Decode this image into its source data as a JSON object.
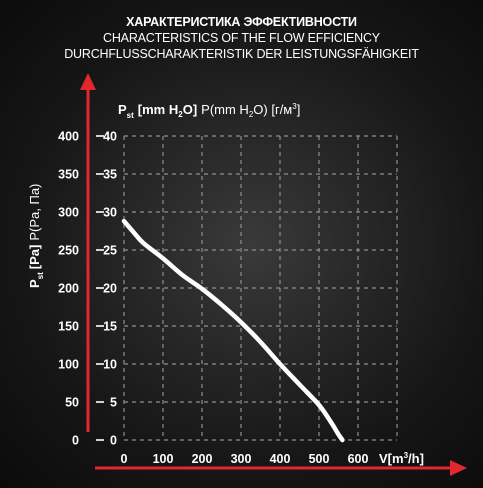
{
  "header": {
    "title_ru": "ХАРАКТЕРИСТИКА ЭФФЕКТИВНОСТИ",
    "title_en": "CHARACTERISTICS OF THE FLOW EFFICIENCY",
    "title_de": "DURCHFLUSSCHARAKTERISTIK DER LEISTUNGSFÄHIGKEIT"
  },
  "colors": {
    "background": "#1a1a1a",
    "axis_arrow": "#e0282d",
    "grid": "#9a9a9a",
    "curve": "#ffffff"
  },
  "chart_data": {
    "type": "line",
    "title": "",
    "ylabel": {
      "main": "P",
      "sub": "st",
      "bracket": "[Pa]",
      "rest": "P(Pa, Па)"
    },
    "y2label": {
      "main": "P",
      "sub": "st",
      "bracket": "[mm H",
      "sub2": "2",
      "close": "O]",
      "rest_open": "P(mm H",
      "rest_sub": "2",
      "rest_close": "O) [г/м",
      "rest_sup": "3",
      "rest_end": "]"
    },
    "xlabel": {
      "main": "V[m",
      "sup": "3",
      "end": "/h]"
    },
    "x_ticks": [
      "0",
      "100",
      "200",
      "300",
      "400",
      "500",
      "600"
    ],
    "y_ticks_pa": [
      "0",
      "50",
      "100",
      "150",
      "200",
      "250",
      "300",
      "350",
      "400"
    ],
    "y_ticks_mm": [
      "0",
      "5",
      "10",
      "15",
      "20",
      "25",
      "30",
      "35",
      "40"
    ],
    "xlim": [
      0,
      700
    ],
    "ylim_pa": [
      0,
      400
    ],
    "ylim_mm": [
      0,
      40
    ],
    "grid": true,
    "series": [
      {
        "x": [
          0,
          25,
          50,
          100,
          150,
          200,
          250,
          300,
          350,
          400,
          450,
          500,
          530,
          548,
          560
        ],
        "y_mm": [
          28.8,
          27.3,
          25.9,
          23.9,
          21.7,
          19.9,
          17.8,
          15.5,
          12.9,
          10.0,
          7.3,
          4.6,
          2.4,
          0.9,
          0
        ]
      }
    ]
  }
}
